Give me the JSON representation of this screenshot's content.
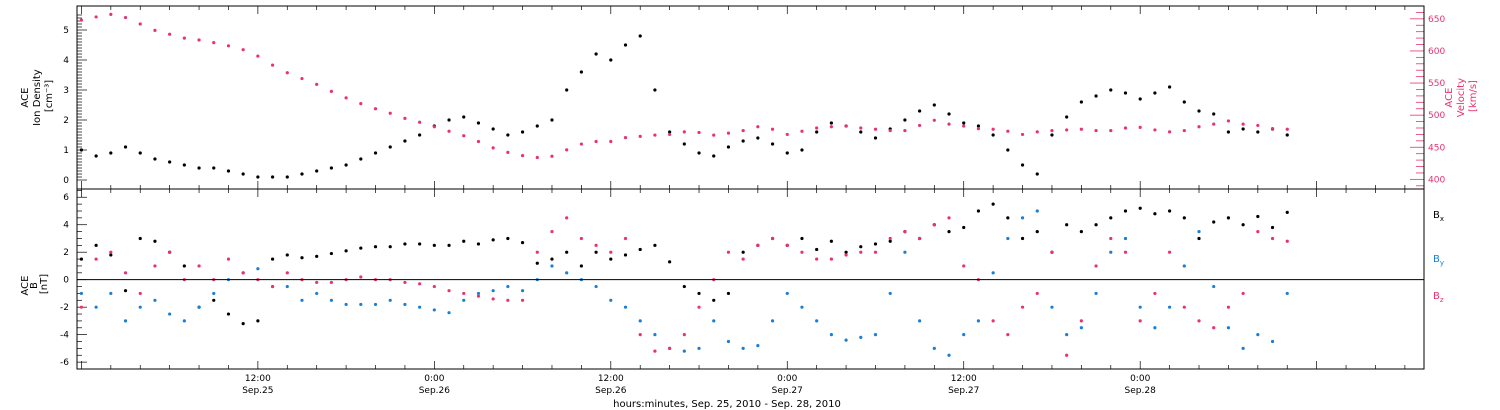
{
  "chart_data": [
    {
      "type": "scatter",
      "panel": "top",
      "ylabel_left": [
        "ACE",
        "Ion Density",
        "[cm⁻³]"
      ],
      "ylabel_right": [
        "ACE",
        "Velocity",
        "[km/s]"
      ],
      "ylim_left": [
        -0.3,
        5.8
      ],
      "ylim_right": [
        385,
        670
      ],
      "yticks_left": [
        0,
        1,
        2,
        3,
        4,
        5
      ],
      "yticks_right": [
        400,
        450,
        500,
        550,
        600,
        650
      ],
      "series": [
        {
          "axis": "left",
          "color": "#000000",
          "x": [
            0,
            1,
            2,
            3,
            4,
            5,
            6,
            7,
            8,
            9,
            10,
            11,
            12,
            13,
            14,
            15,
            16,
            17,
            18,
            19,
            20,
            21,
            22,
            23,
            24,
            25,
            26,
            27,
            28,
            29,
            30,
            31,
            32,
            33,
            34,
            35,
            36,
            37,
            38,
            39,
            40,
            41,
            42,
            43,
            44,
            45,
            46,
            47,
            48,
            49,
            50,
            51,
            52,
            53,
            54,
            55,
            56,
            57,
            58,
            59,
            60,
            61,
            62,
            63,
            64,
            65,
            66,
            67,
            68,
            69,
            70,
            71,
            72,
            73,
            74,
            75,
            76,
            77,
            78,
            79,
            80,
            81,
            82
          ],
          "y": [
            1.0,
            0.8,
            0.9,
            1.1,
            0.9,
            0.7,
            0.6,
            0.5,
            0.4,
            0.4,
            0.3,
            0.2,
            0.1,
            0.1,
            0.1,
            0.2,
            0.3,
            0.4,
            0.5,
            0.7,
            0.9,
            1.1,
            1.3,
            1.5,
            1.8,
            2.0,
            2.1,
            1.9,
            1.7,
            1.5,
            1.6,
            1.8,
            2.0,
            3.0,
            3.6,
            4.2,
            4.0,
            4.5,
            4.8,
            3.0,
            1.6,
            1.2,
            0.9,
            0.8,
            1.1,
            1.3,
            1.4,
            1.2,
            0.9,
            1.0,
            1.6,
            1.9,
            1.8,
            1.6,
            1.4,
            1.7,
            2.0,
            2.3,
            2.5,
            2.2,
            1.9,
            1.8,
            1.5,
            1.0,
            0.5,
            0.2,
            1.5,
            2.1,
            2.6,
            2.8,
            3.0,
            2.9,
            2.7,
            2.9,
            3.1,
            2.6,
            2.3,
            2.2,
            1.6,
            1.7,
            1.6,
            1.7,
            1.5
          ]
        },
        {
          "axis": "right",
          "color": "#e8336d",
          "x": [
            0,
            1,
            2,
            3,
            4,
            5,
            6,
            7,
            8,
            9,
            10,
            11,
            12,
            13,
            14,
            15,
            16,
            17,
            18,
            19,
            20,
            21,
            22,
            23,
            24,
            25,
            26,
            27,
            28,
            29,
            30,
            31,
            32,
            33,
            34,
            35,
            36,
            37,
            38,
            39,
            40,
            41,
            42,
            43,
            44,
            45,
            46,
            47,
            48,
            49,
            50,
            51,
            52,
            53,
            54,
            55,
            56,
            57,
            58,
            59,
            60,
            61,
            62,
            63,
            64,
            65,
            66,
            67,
            68,
            69,
            70,
            71,
            72,
            73,
            74,
            75,
            76,
            77,
            78,
            79,
            80,
            81,
            82
          ],
          "y": [
            648,
            653,
            657,
            652,
            642,
            632,
            626,
            620,
            617,
            613,
            608,
            602,
            592,
            578,
            566,
            557,
            548,
            537,
            527,
            518,
            510,
            503,
            495,
            489,
            482,
            475,
            468,
            459,
            449,
            442,
            437,
            434,
            436,
            446,
            455,
            459,
            459,
            465,
            467,
            469,
            470,
            474,
            473,
            469,
            472,
            476,
            482,
            478,
            470,
            475,
            480,
            482,
            483,
            480,
            478,
            476,
            476,
            484,
            492,
            486,
            483,
            479,
            478,
            475,
            470,
            474,
            476,
            477,
            478,
            476,
            476,
            480,
            481,
            477,
            474,
            476,
            482,
            486,
            491,
            486,
            484,
            479,
            478
          ]
        }
      ]
    },
    {
      "type": "scatter",
      "panel": "bottom",
      "ylabel_left": [
        "ACE",
        "B",
        "[nT]"
      ],
      "ylim": [
        -6.5,
        6.6
      ],
      "yticks": [
        -6,
        -4,
        -2,
        0,
        2,
        4,
        6
      ],
      "zero_line": true,
      "series": [
        {
          "name": "Bx",
          "name_sub": "x",
          "color": "#000000",
          "x": [
            0,
            1,
            2,
            3,
            4,
            5,
            6,
            7,
            8,
            9,
            10,
            11,
            12,
            13,
            14,
            15,
            16,
            17,
            18,
            19,
            20,
            21,
            22,
            23,
            24,
            25,
            26,
            27,
            28,
            29,
            30,
            31,
            32,
            33,
            34,
            35,
            36,
            37,
            38,
            39,
            40,
            41,
            42,
            43,
            44,
            45,
            46,
            47,
            48,
            49,
            50,
            51,
            52,
            53,
            54,
            55,
            56,
            57,
            58,
            59,
            60,
            61,
            62,
            63,
            64,
            65,
            66,
            67,
            68,
            69,
            70,
            71,
            72,
            73,
            74,
            75,
            76,
            77,
            78,
            79,
            80,
            81,
            82
          ],
          "y": [
            1.5,
            2.5,
            1.8,
            -0.8,
            3.0,
            2.8,
            2.0,
            1.0,
            -2.0,
            -1.5,
            -2.5,
            -3.2,
            -3.0,
            1.5,
            1.8,
            1.6,
            1.7,
            1.9,
            2.1,
            2.3,
            2.4,
            2.4,
            2.6,
            2.6,
            2.5,
            2.5,
            2.8,
            2.6,
            2.9,
            3.0,
            2.7,
            1.2,
            1.5,
            2.0,
            1.0,
            2.0,
            1.5,
            1.8,
            2.2,
            2.5,
            1.3,
            -0.5,
            -1.0,
            -1.5,
            -1.0,
            2.0,
            2.5,
            3.0,
            2.5,
            3.0,
            2.2,
            2.8,
            2.0,
            2.4,
            2.6,
            2.8,
            3.5,
            3.0,
            4.0,
            3.5,
            3.8,
            5.0,
            5.5,
            4.5,
            3.0,
            3.5,
            2.0,
            4.0,
            3.5,
            4.0,
            4.5,
            5.0,
            5.2,
            4.8,
            5.0,
            4.5,
            3.0,
            4.2,
            4.5,
            4.0,
            4.6,
            3.8,
            4.9
          ]
        },
        {
          "name": "By",
          "name_sub": "y",
          "color": "#1a7fd4",
          "x": [
            0,
            1,
            2,
            3,
            4,
            5,
            6,
            7,
            8,
            9,
            10,
            11,
            12,
            13,
            14,
            15,
            16,
            17,
            18,
            19,
            20,
            21,
            22,
            23,
            24,
            25,
            26,
            27,
            28,
            29,
            30,
            31,
            32,
            33,
            34,
            35,
            36,
            37,
            38,
            39,
            40,
            41,
            42,
            43,
            44,
            45,
            46,
            47,
            48,
            49,
            50,
            51,
            52,
            53,
            54,
            55,
            56,
            57,
            58,
            59,
            60,
            61,
            62,
            63,
            64,
            65,
            66,
            67,
            68,
            69,
            70,
            71,
            72,
            73,
            74,
            75,
            76,
            77,
            78,
            79,
            80,
            81,
            82
          ],
          "y": [
            -1.0,
            -2.0,
            -1.0,
            -3.0,
            -2.0,
            -1.5,
            -2.5,
            -3.0,
            -2.0,
            -1.0,
            0.0,
            0.5,
            0.8,
            -0.5,
            -0.5,
            -1.5,
            -1.0,
            -1.5,
            -1.8,
            -1.8,
            -1.8,
            -1.5,
            -1.8,
            -2.0,
            -2.2,
            -2.4,
            -1.5,
            -1.0,
            -0.8,
            -0.5,
            -0.8,
            0.0,
            1.0,
            0.5,
            0.0,
            -0.5,
            -1.5,
            -2.0,
            -3.0,
            -4.0,
            -5.0,
            -5.2,
            -5.0,
            -3.0,
            -4.5,
            -5.0,
            -4.8,
            -3.0,
            -1.0,
            -2.0,
            -3.0,
            -4.0,
            -4.4,
            -4.2,
            -4.0,
            -1.0,
            2.0,
            -3.0,
            -5.0,
            -5.5,
            -4.0,
            -3.0,
            0.5,
            3.0,
            4.5,
            5.0,
            -2.0,
            -4.0,
            -3.5,
            -1.0,
            2.0,
            3.0,
            -2.0,
            -3.5,
            -2.0,
            1.0,
            3.5,
            -0.5,
            -3.5,
            -5.0,
            -4.0,
            -4.5,
            -1.0
          ]
        },
        {
          "name": "Bz",
          "name_sub": "z",
          "color": "#e8336d",
          "x": [
            0,
            1,
            2,
            3,
            4,
            5,
            6,
            7,
            8,
            9,
            10,
            11,
            12,
            13,
            14,
            15,
            16,
            17,
            18,
            19,
            20,
            21,
            22,
            23,
            24,
            25,
            26,
            27,
            28,
            29,
            30,
            31,
            32,
            33,
            34,
            35,
            36,
            37,
            38,
            39,
            40,
            41,
            42,
            43,
            44,
            45,
            46,
            47,
            48,
            49,
            50,
            51,
            52,
            53,
            54,
            55,
            56,
            57,
            58,
            59,
            60,
            61,
            62,
            63,
            64,
            65,
            66,
            67,
            68,
            69,
            70,
            71,
            72,
            73,
            74,
            75,
            76,
            77,
            78,
            79,
            80,
            81,
            82
          ],
          "y": [
            -2.0,
            1.5,
            2.0,
            0.5,
            -1.0,
            1.0,
            2.0,
            0.0,
            1.0,
            0.0,
            1.5,
            0.5,
            0.0,
            -0.5,
            0.5,
            0.0,
            -0.2,
            -0.2,
            0.0,
            0.2,
            0.0,
            0.0,
            -0.2,
            -0.3,
            -0.5,
            -0.8,
            -1.0,
            -1.2,
            -1.4,
            -1.5,
            -1.5,
            2.0,
            3.5,
            4.5,
            3.0,
            2.5,
            2.0,
            3.0,
            -4.0,
            -5.2,
            -5.0,
            -4.0,
            -2.0,
            0.0,
            2.0,
            1.5,
            2.5,
            3.0,
            2.5,
            2.0,
            1.5,
            1.5,
            1.8,
            2.0,
            2.0,
            3.0,
            3.5,
            3.0,
            4.0,
            4.5,
            1.0,
            0.0,
            -3.0,
            -4.0,
            -2.0,
            -1.0,
            2.0,
            -5.5,
            -3.0,
            1.0,
            3.0,
            2.0,
            -3.0,
            -1.0,
            2.0,
            -2.0,
            -3.0,
            -3.5,
            -2.0,
            -1.0,
            3.5,
            3.0,
            2.8
          ]
        }
      ]
    }
  ],
  "x_axis": {
    "ticks": [
      {
        "x": 12,
        "line1": "12:00",
        "line2": "Sep.25"
      },
      {
        "x": 24,
        "line1": "0:00",
        "line2": "Sep.26"
      },
      {
        "x": 36,
        "line1": "12:00",
        "line2": "Sep.26"
      },
      {
        "x": 48,
        "line1": "0:00",
        "line2": "Sep.27"
      },
      {
        "x": 60,
        "line1": "12:00",
        "line2": "Sep.27"
      },
      {
        "x": 72,
        "line1": "0:00",
        "line2": "Sep.28"
      }
    ],
    "xlim": [
      -0.3,
      91.3
    ],
    "xlabel": "hours:minutes, Sep. 25, 2010 - Sep. 28, 2010"
  }
}
